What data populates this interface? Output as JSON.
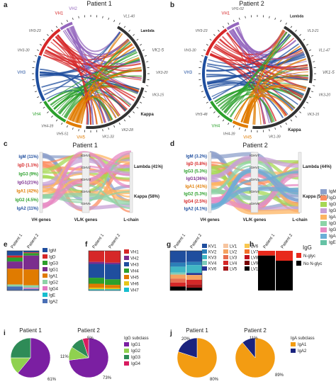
{
  "panels": {
    "a": {
      "letter": "a",
      "title": "Patient 1",
      "labels": [
        {
          "t": "VH1",
          "c": "#d62728"
        },
        {
          "t": "VH2",
          "c": "#9467bd"
        },
        {
          "t": "VH3-23",
          "c": "#555"
        },
        {
          "t": "VH3-30",
          "c": "#555"
        },
        {
          "t": "VH3",
          "c": "#1f4e9e"
        },
        {
          "t": "VH4",
          "c": "#2ca02c"
        },
        {
          "t": "VH4-39",
          "c": "#555"
        },
        {
          "t": "VH5-51",
          "c": "#555"
        },
        {
          "t": "VH5",
          "c": "#e07b00"
        },
        {
          "t": "Lambda",
          "c": "#222"
        },
        {
          "t": "VL1-40",
          "c": "#555"
        },
        {
          "t": "VK1-5",
          "c": "#555"
        },
        {
          "t": "VK3-20",
          "c": "#555"
        },
        {
          "t": "VK3-15",
          "c": "#555"
        },
        {
          "t": "Kappa",
          "c": "#222"
        },
        {
          "t": "VK2-28",
          "c": "#555"
        },
        {
          "t": "VK1-33",
          "c": "#555"
        }
      ]
    },
    "b": {
      "letter": "b",
      "title": "Patient 2",
      "labels": [
        {
          "t": "VH1",
          "c": "#d62728"
        },
        {
          "t": "VH1-02",
          "c": "#555"
        },
        {
          "t": "VH3-23",
          "c": "#555"
        },
        {
          "t": "VH3-30",
          "c": "#555"
        },
        {
          "t": "VH3",
          "c": "#1f4e9e"
        },
        {
          "t": "VH3-48",
          "c": "#555"
        },
        {
          "t": "VH4",
          "c": "#2ca02c"
        },
        {
          "t": "VH4-39",
          "c": "#555"
        },
        {
          "t": "VH5",
          "c": "#e07b00"
        },
        {
          "t": "VL3-21",
          "c": "#555"
        },
        {
          "t": "Lambda",
          "c": "#222"
        },
        {
          "t": "VL1-47",
          "c": "#555"
        },
        {
          "t": "VK1-5",
          "c": "#555"
        },
        {
          "t": "VK3-20",
          "c": "#555"
        },
        {
          "t": "VK3-15",
          "c": "#555"
        },
        {
          "t": "Kappa",
          "c": "#222"
        },
        {
          "t": "VK1-39",
          "c": "#555"
        }
      ]
    },
    "c": {
      "letter": "c",
      "title": "Patient 1",
      "left": [
        {
          "t": "IgM (11%)",
          "c": "#1f4e9e"
        },
        {
          "t": "IgD (1.1%)",
          "c": "#d62728"
        },
        {
          "t": "IgG3 (9%)",
          "c": "#2ca02c"
        },
        {
          "t": "IgG1(21%)",
          "c": "#7b2d8e"
        },
        {
          "t": "IgA1 (42%)",
          "c": "#e07b00"
        },
        {
          "t": "IgG2 (4.5%)",
          "c": "#2ca02c"
        },
        {
          "t": "IgA2 (11%)",
          "c": "#1f4e9e"
        }
      ],
      "right": [
        "Lambda (41%)",
        "Kappa (58%)"
      ],
      "axis": [
        "VH genes",
        "VL/K genes",
        "L-chain"
      ],
      "mid": [
        "IGHV1",
        "IGHV2",
        "IGHV3",
        "IGHV4",
        "IGHV5"
      ]
    },
    "d": {
      "letter": "d",
      "title": "Patient 2",
      "left": [
        {
          "t": "IgM (3.2%)",
          "c": "#1f4e9e"
        },
        {
          "t": "IgD (0.8%)",
          "c": "#d62728"
        },
        {
          "t": "IgG3 (5.3%)",
          "c": "#2ca02c"
        },
        {
          "t": "IgG1(36%)",
          "c": "#7b2d8e"
        },
        {
          "t": "IgA1 (41%)",
          "c": "#e07b00"
        },
        {
          "t": "IgG2 (5.3%)",
          "c": "#2ca02c"
        },
        {
          "t": "IgG4 (2.5%)",
          "c": "#d62728"
        },
        {
          "t": "IgA2 (4.1%)",
          "c": "#1f4e9e"
        }
      ],
      "right": [
        "Lambda (44%)",
        "Kappa (56%)"
      ],
      "axis": [
        "VH genes",
        "VL/K genes",
        "L-chain"
      ],
      "mid": [
        "IGHV7",
        "IGHV1",
        "IGHV3",
        "IGHV4",
        "IGHV5"
      ],
      "legend": [
        {
          "t": "IgM",
          "c": "#8da0cb"
        },
        {
          "t": "IgD",
          "c": "#fc8d62"
        },
        {
          "t": "IgG3",
          "c": "#a6d854"
        },
        {
          "t": "IgG1",
          "c": "#c7a0d6"
        },
        {
          "t": "IgA1",
          "c": "#fdb462"
        },
        {
          "t": "IgG2",
          "c": "#8dd3a7"
        },
        {
          "t": "IgG4",
          "c": "#e78ac3"
        },
        {
          "t": "IgA2",
          "c": "#6baed6"
        },
        {
          "t": "IgE",
          "c": "#66c2a5"
        }
      ]
    },
    "e": {
      "letter": "e",
      "cols": [
        "Patient 1",
        "Patient 2"
      ],
      "legend": [
        {
          "t": "IgM",
          "c": "#1f4e9e"
        },
        {
          "t": "IgD",
          "c": "#d62728"
        },
        {
          "t": "IgG3",
          "c": "#2ca02c"
        },
        {
          "t": "IgG1",
          "c": "#7b2d8e"
        },
        {
          "t": "IgA1",
          "c": "#e07b00"
        },
        {
          "t": "IgG2",
          "c": "#8dd3a7"
        },
        {
          "t": "IgG4",
          "c": "#e377c2"
        },
        {
          "t": "IgE",
          "c": "#17becf"
        },
        {
          "t": "IgA2",
          "c": "#4a6fb5"
        }
      ]
    },
    "f": {
      "letter": "f",
      "cols": [
        "Patient 1",
        "Patient 2"
      ],
      "legend": [
        {
          "t": "VH1",
          "c": "#d62728"
        },
        {
          "t": "VH2",
          "c": "#7b2d8e"
        },
        {
          "t": "VH3",
          "c": "#1f4e9e"
        },
        {
          "t": "VH4",
          "c": "#2ca02c"
        },
        {
          "t": "VH5",
          "c": "#e07b00"
        },
        {
          "t": "VH6",
          "c": "#e6c619"
        },
        {
          "t": "VH7",
          "c": "#17becf"
        }
      ]
    },
    "g": {
      "letter": "g",
      "cols": [
        "Patient 1",
        "Patient 2"
      ],
      "legend": [
        {
          "t": "KV1",
          "c": "#1f4e9e"
        },
        {
          "t": "KV2",
          "c": "#2c7fb8"
        },
        {
          "t": "KV3",
          "c": "#41b6c4"
        },
        {
          "t": "KV4",
          "c": "#7fcdbb"
        },
        {
          "t": "KV6",
          "c": "#253494"
        },
        {
          "t": "LV1",
          "c": "#f7c59f"
        },
        {
          "t": "LV2",
          "c": "#f4a261"
        },
        {
          "t": "LV3",
          "c": "#e76f51"
        },
        {
          "t": "LV4",
          "c": "#d62828"
        },
        {
          "t": "LV5",
          "c": "#a4161a"
        },
        {
          "t": "LV6",
          "c": "#f9c74f"
        },
        {
          "t": "LV7",
          "c": "#f3722c"
        },
        {
          "t": "LV8",
          "c": "#c1121f"
        },
        {
          "t": "LV9",
          "c": "#780000"
        },
        {
          "t": "LV10",
          "c": "#000000"
        }
      ]
    },
    "h": {
      "letter": "h",
      "cols": [
        "Patient 1",
        "Patient 2"
      ],
      "title": "IgG",
      "legend": [
        {
          "t": "N-glyc",
          "c": "#e8291c"
        },
        {
          "t": "No N-glyc",
          "c": "#000000"
        }
      ],
      "values": [
        0.12,
        0.25
      ]
    },
    "i": {
      "letter": "i",
      "titles": [
        "Patient 1",
        "Patient 2"
      ],
      "legend_title": "IgG subclass",
      "legend": [
        {
          "t": "IgG1",
          "c": "#7b1fa2"
        },
        {
          "t": "IgG2",
          "c": "#8fd14f"
        },
        {
          "t": "IgG3",
          "c": "#2e8b57"
        },
        {
          "t": "IgG4",
          "c": "#d81b60"
        }
      ],
      "pies": [
        [
          0.61,
          0.14,
          0.25,
          0
        ],
        [
          0.73,
          0.11,
          0.11,
          0.05
        ]
      ],
      "pct": [
        [
          "61%"
        ],
        [
          "5%",
          "11%",
          "73%"
        ]
      ]
    },
    "j": {
      "letter": "j",
      "titles": [
        "Patient 1",
        "Patient 2"
      ],
      "legend_title": "IgA subclass",
      "legend": [
        {
          "t": "IgA1",
          "c": "#f39c12"
        },
        {
          "t": "IgA2",
          "c": "#1a237e"
        }
      ],
      "pies": [
        [
          0.8,
          0.2
        ],
        [
          0.89,
          0.11
        ]
      ],
      "pct": [
        [
          "20%",
          "80%"
        ],
        [
          "11%",
          "89%"
        ]
      ]
    }
  }
}
